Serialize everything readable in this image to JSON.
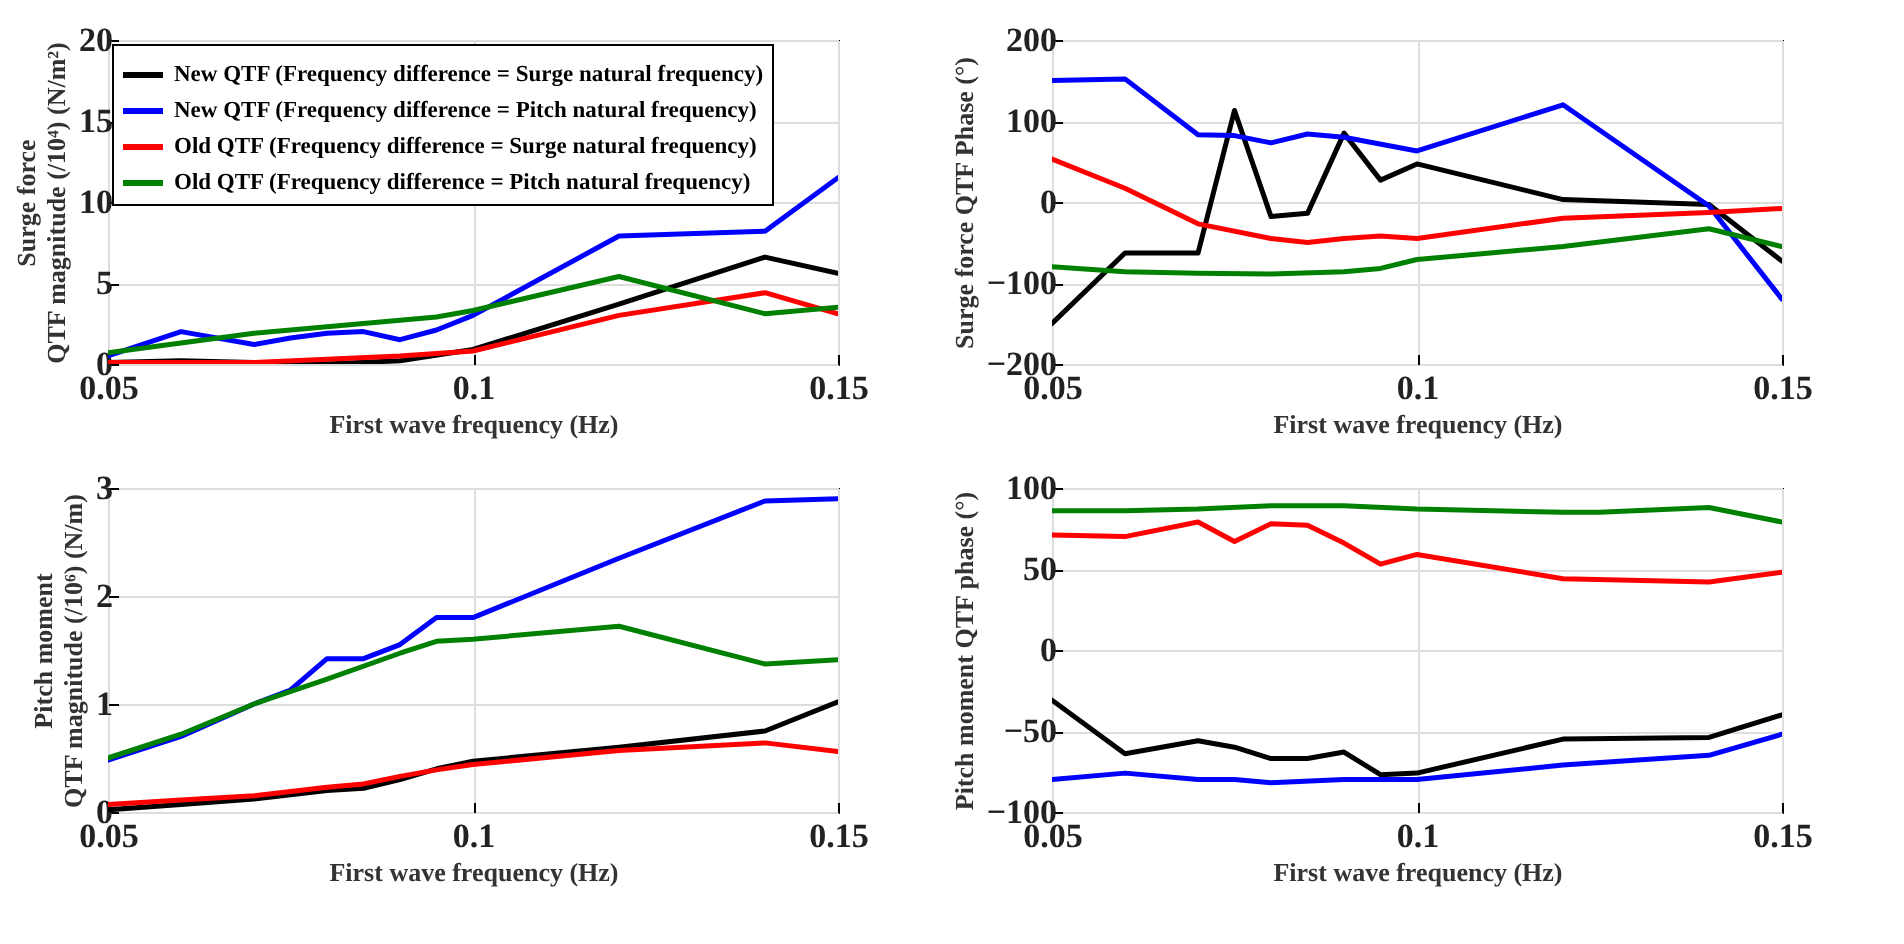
{
  "chart_data": [
    {
      "type": "line",
      "xlabel": "First wave frequency (Hz)",
      "ylabel": "Surge force\nQTF magnitude (/10⁴) (N/m²)",
      "xlim": [
        0.05,
        0.15
      ],
      "xticks": [
        0.05,
        0.1,
        0.15
      ],
      "ylim": [
        0,
        20
      ],
      "yticks": [
        0,
        5,
        10,
        15,
        20
      ],
      "grid": true,
      "legend": "top left",
      "line_style": "solid",
      "series": [
        {
          "name": "New QTF (Frequency difference = Surge natural frequency)",
          "color": "#000000",
          "x": [
            0.05,
            0.06,
            0.07,
            0.08,
            0.09,
            0.1,
            0.12,
            0.14,
            0.15
          ],
          "values": [
            0.1,
            0.2,
            0.1,
            0,
            0.2,
            0.9,
            3.7,
            6.6,
            5.6
          ]
        },
        {
          "name": "New QTF (Frequency difference = Pitch natural frequency)",
          "color": "#0000ff",
          "x": [
            0.05,
            0.06,
            0.07,
            0.075,
            0.08,
            0.085,
            0.09,
            0.095,
            0.1,
            0.12,
            0.14,
            0.15
          ],
          "values": [
            0.5,
            2.0,
            1.2,
            1.6,
            1.9,
            2.0,
            1.5,
            2.1,
            3.0,
            7.9,
            8.2,
            11.5
          ]
        },
        {
          "name": "Old QTF (Frequency difference = Surge natural frequency)",
          "color": "#ff0000",
          "x": [
            0.05,
            0.06,
            0.07,
            0.08,
            0.09,
            0.1,
            0.12,
            0.14,
            0.15
          ],
          "values": [
            0.1,
            0.1,
            0.1,
            0.3,
            0.5,
            0.8,
            3.0,
            4.4,
            3.1
          ]
        },
        {
          "name": "Old QTF (Frequency difference = Pitch natural frequency)",
          "color": "#008000",
          "x": [
            0.05,
            0.06,
            0.07,
            0.08,
            0.09,
            0.095,
            0.1,
            0.12,
            0.14,
            0.15
          ],
          "values": [
            0.7,
            1.3,
            1.9,
            2.3,
            2.7,
            2.9,
            3.3,
            5.4,
            3.1,
            3.5
          ]
        }
      ]
    },
    {
      "type": "line",
      "xlabel": "First wave frequency (Hz)",
      "ylabel": "Surge force QTF Phase (°)",
      "xlim": [
        0.05,
        0.15
      ],
      "xticks": [
        0.05,
        0.1,
        0.15
      ],
      "ylim": [
        -200,
        200
      ],
      "yticks": [
        -200,
        -100,
        0,
        100,
        200
      ],
      "grid": true,
      "line_style": "solid",
      "series": [
        {
          "color": "#000000",
          "x": [
            0.05,
            0.06,
            0.07,
            0.075,
            0.08,
            0.085,
            0.09,
            0.095,
            0.1,
            0.12,
            0.14,
            0.15
          ],
          "values": [
            -150,
            -63,
            -63,
            113,
            -18,
            -14,
            85,
            27,
            47,
            3,
            -3,
            -73
          ]
        },
        {
          "color": "#0000ff",
          "x": [
            0.05,
            0.06,
            0.07,
            0.075,
            0.08,
            0.085,
            0.09,
            0.1,
            0.12,
            0.14,
            0.15
          ],
          "values": [
            150,
            152,
            83,
            82,
            73,
            84,
            80,
            63,
            120,
            -5,
            -120
          ]
        },
        {
          "color": "#ff0000",
          "x": [
            0.05,
            0.06,
            0.07,
            0.08,
            0.085,
            0.09,
            0.095,
            0.1,
            0.12,
            0.14,
            0.15
          ],
          "values": [
            53,
            17,
            -27,
            -45,
            -50,
            -45,
            -42,
            -45,
            -20,
            -13,
            -8
          ]
        },
        {
          "color": "#008000",
          "x": [
            0.05,
            0.06,
            0.07,
            0.08,
            0.09,
            0.095,
            0.1,
            0.12,
            0.14,
            0.15
          ],
          "values": [
            -80,
            -86,
            -88,
            -89,
            -86,
            -82,
            -71,
            -55,
            -33,
            -55
          ]
        }
      ]
    },
    {
      "type": "line",
      "xlabel": "First wave frequency (Hz)",
      "ylabel": "Pitch moment\nQTF magnitude (/10⁶) (N/m)",
      "xlim": [
        0.05,
        0.15
      ],
      "xticks": [
        0.05,
        0.1,
        0.15
      ],
      "ylim": [
        0,
        3
      ],
      "yticks": [
        0,
        1,
        2,
        3
      ],
      "grid": true,
      "line_style": "solid",
      "series": [
        {
          "color": "#000000",
          "x": [
            0.05,
            0.06,
            0.07,
            0.08,
            0.085,
            0.09,
            0.095,
            0.1,
            0.12,
            0.14,
            0.15
          ],
          "values": [
            0.02,
            0.07,
            0.12,
            0.2,
            0.22,
            0.3,
            0.4,
            0.47,
            0.6,
            0.75,
            1.02
          ]
        },
        {
          "color": "#0000ff",
          "x": [
            0.05,
            0.06,
            0.07,
            0.075,
            0.08,
            0.085,
            0.09,
            0.095,
            0.1,
            0.12,
            0.14,
            0.15
          ],
          "values": [
            0.48,
            0.7,
            1.0,
            1.13,
            1.42,
            1.42,
            1.55,
            1.8,
            1.8,
            2.35,
            2.88,
            2.9
          ]
        },
        {
          "color": "#ff0000",
          "x": [
            0.05,
            0.06,
            0.07,
            0.08,
            0.085,
            0.09,
            0.095,
            0.1,
            0.12,
            0.14,
            0.15
          ],
          "values": [
            0.07,
            0.11,
            0.15,
            0.23,
            0.26,
            0.33,
            0.39,
            0.44,
            0.57,
            0.64,
            0.56
          ]
        },
        {
          "color": "#008000",
          "x": [
            0.05,
            0.06,
            0.07,
            0.08,
            0.09,
            0.095,
            0.1,
            0.12,
            0.14,
            0.15
          ],
          "values": [
            0.5,
            0.72,
            1.0,
            1.23,
            1.47,
            1.58,
            1.6,
            1.72,
            1.37,
            1.41
          ]
        }
      ]
    },
    {
      "type": "line",
      "xlabel": "First wave frequency (Hz)",
      "ylabel": "Pitch moment QTF phase (°)",
      "xlim": [
        0.05,
        0.15
      ],
      "xticks": [
        0.05,
        0.1,
        0.15
      ],
      "ylim": [
        -100,
        100
      ],
      "yticks": [
        -100,
        -50,
        0,
        50,
        100
      ],
      "grid": true,
      "line_style": "solid",
      "series": [
        {
          "color": "#000000",
          "x": [
            0.05,
            0.06,
            0.07,
            0.075,
            0.08,
            0.085,
            0.09,
            0.095,
            0.1,
            0.12,
            0.14,
            0.15
          ],
          "values": [
            -31,
            -64,
            -56,
            -60,
            -67,
            -67,
            -63,
            -77,
            -76,
            -55,
            -54,
            -40
          ]
        },
        {
          "color": "#0000ff",
          "x": [
            0.05,
            0.06,
            0.07,
            0.075,
            0.08,
            0.09,
            0.1,
            0.12,
            0.14,
            0.15
          ],
          "values": [
            -80,
            -76,
            -80,
            -80,
            -82,
            -80,
            -80,
            -71,
            -65,
            -52
          ]
        },
        {
          "color": "#ff0000",
          "x": [
            0.05,
            0.06,
            0.07,
            0.075,
            0.08,
            0.085,
            0.09,
            0.095,
            0.1,
            0.12,
            0.14,
            0.15
          ],
          "values": [
            71,
            70,
            79,
            67,
            78,
            77,
            66,
            53,
            59,
            44,
            42,
            48
          ]
        },
        {
          "color": "#008000",
          "x": [
            0.05,
            0.06,
            0.07,
            0.08,
            0.09,
            0.1,
            0.12,
            0.125,
            0.14,
            0.15
          ],
          "values": [
            86,
            86,
            87,
            89,
            89,
            87,
            85,
            85,
            88,
            79
          ]
        }
      ]
    }
  ]
}
